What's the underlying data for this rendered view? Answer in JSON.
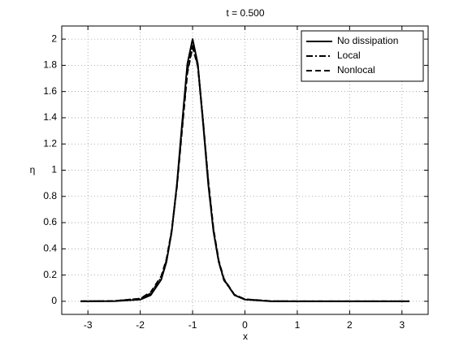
{
  "chart_data": {
    "type": "line",
    "title": "t = 0.500",
    "x_label": "x",
    "y_label": "η",
    "x": [
      -3.14,
      -2.5,
      -2,
      -1.8,
      -1.6,
      -1.5,
      -1.4,
      -1.3,
      -1.2,
      -1.1,
      -1,
      -0.9,
      -0.8,
      -0.7,
      -0.6,
      -0.5,
      -0.4,
      -0.2,
      0,
      0.5,
      1,
      2,
      3.14
    ],
    "series": [
      {
        "name": "No dissipation",
        "color": "#000000",
        "dash": "solid",
        "values": [
          0,
          0.001,
          0.013,
          0.047,
          0.165,
          0.3,
          0.53,
          0.89,
          1.36,
          1.81,
          2,
          1.81,
          1.36,
          0.89,
          0.53,
          0.3,
          0.165,
          0.047,
          0.013,
          0,
          0,
          0,
          0
        ]
      },
      {
        "name": "Local",
        "color": "#000000",
        "dash": "dashdot",
        "values": [
          0,
          0.002,
          0.02,
          0.06,
          0.18,
          0.31,
          0.53,
          0.88,
          1.33,
          1.76,
          1.95,
          1.8,
          1.38,
          0.91,
          0.54,
          0.3,
          0.16,
          0.05,
          0.015,
          0.001,
          0,
          0,
          0
        ]
      },
      {
        "name": "Nonlocal",
        "color": "#000000",
        "dash": "dashed",
        "values": [
          0,
          0.002,
          0.02,
          0.07,
          0.19,
          0.32,
          0.54,
          0.87,
          1.31,
          1.74,
          1.94,
          1.79,
          1.37,
          0.92,
          0.55,
          0.31,
          0.17,
          0.05,
          0.016,
          0.001,
          0,
          0,
          0
        ]
      }
    ],
    "xlim": [
      -3.5,
      3.5
    ],
    "xticks": [
      -3,
      -2,
      -1,
      0,
      1,
      2,
      3
    ],
    "ylim": [
      -0.1,
      2.1
    ],
    "yticks": [
      0,
      0.2,
      0.4,
      0.6,
      0.8,
      1,
      1.2,
      1.4,
      1.6,
      1.8,
      2
    ],
    "grid": true,
    "legend": "top-right"
  }
}
